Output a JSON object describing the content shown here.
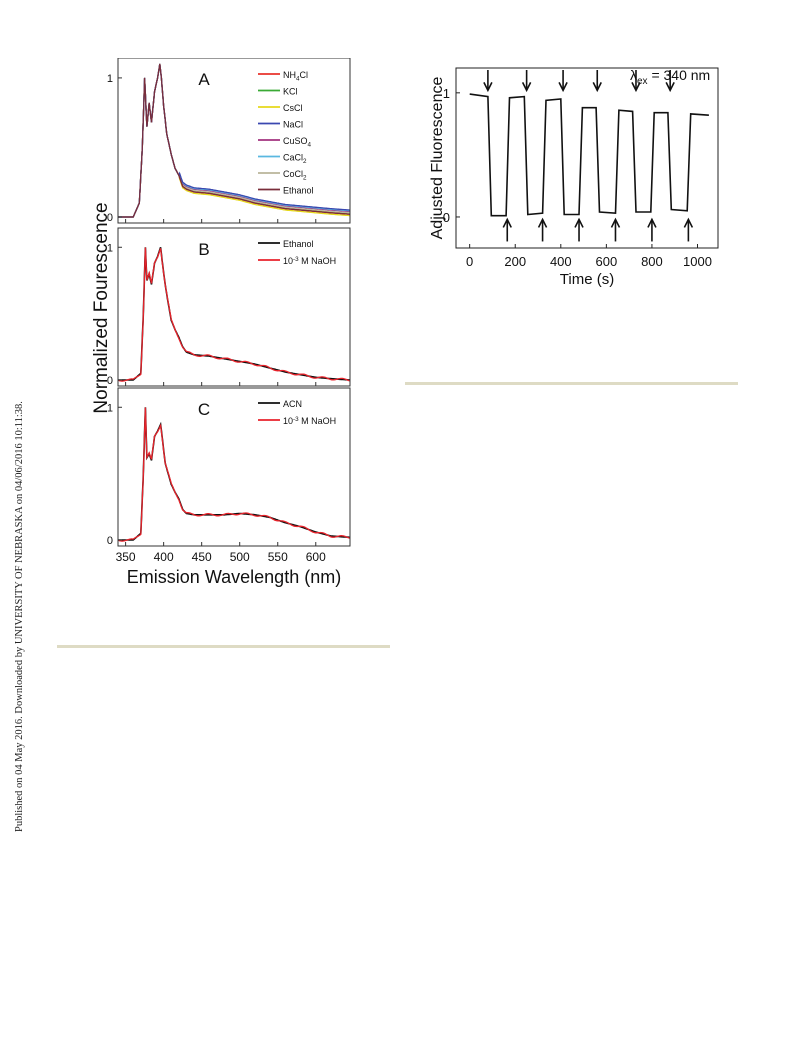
{
  "side_note": "Published on 04 May 2016. Downloaded by UNIVERSITY OF NEBRASKA on 04/06/2016 10:11:38.",
  "colors": {
    "NH4Cl": "#e8332b",
    "KCl": "#3aaa35",
    "CsCl": "#e6d81c",
    "NaCl": "#3a48b0",
    "CuSO4": "#a3327f",
    "CaCl2": "#5ab8e0",
    "CoCl2": "#b9b59a",
    "Ethanol_A": "#7a2d3a",
    "black": "#111111",
    "red": "#e8232b"
  },
  "chart_data": [
    {
      "type": "line",
      "panels_shared": {
        "ylabel": "Normalized Fourescence",
        "xlabel": "Emission Wavelength (nm)",
        "xlim": [
          340,
          645
        ],
        "xticks": [
          "350",
          "400",
          "450",
          "500",
          "550",
          "600"
        ],
        "ylim": [
          0,
          1.1
        ],
        "yticks": [
          "0",
          "1"
        ]
      },
      "panels": [
        {
          "label": "A",
          "series": [
            {
              "name": "NH4Cl",
              "legend": {
                "base": "NH",
                "sub": "4",
                "rest": "Cl"
              },
              "offset": 0.0
            },
            {
              "name": "KCl",
              "legend": {
                "base": "KCl",
                "sub": "",
                "rest": ""
              },
              "offset": 0.005
            },
            {
              "name": "CsCl",
              "legend": {
                "base": "CsCl",
                "sub": "",
                "rest": ""
              },
              "offset": -0.01
            },
            {
              "name": "NaCl",
              "legend": {
                "base": "NaCl",
                "sub": "",
                "rest": ""
              },
              "offset": 0.03
            },
            {
              "name": "CuSO4",
              "legend": {
                "base": "CuSO",
                "sub": "4",
                "rest": ""
              },
              "offset": 0.02
            },
            {
              "name": "CaCl2",
              "legend": {
                "base": "CaCl",
                "sub": "2",
                "rest": ""
              },
              "offset": 0.025
            },
            {
              "name": "CoCl2",
              "legend": {
                "base": "CoCl",
                "sub": "2",
                "rest": ""
              },
              "offset": 0.01
            },
            {
              "name": "Ethanol",
              "legend": {
                "base": "Ethanol",
                "sub": "",
                "rest": ""
              },
              "offset": 0.0
            }
          ]
        },
        {
          "label": "B",
          "series": [
            {
              "name": "Ethanol",
              "legend": {
                "base": "Ethanol",
                "sub": "",
                "rest": ""
              }
            },
            {
              "name": "10-3 M NaOH",
              "legend": {
                "base": "10",
                "sup": "-3",
                "rest": " M NaOH"
              }
            }
          ]
        },
        {
          "label": "C",
          "series": [
            {
              "name": "ACN",
              "legend": {
                "base": "ACN",
                "sub": "",
                "rest": ""
              }
            },
            {
              "name": "10-3 M NaOH",
              "legend": {
                "base": "10",
                "sup": "-3",
                "rest": " M NaOH"
              }
            }
          ]
        }
      ],
      "spectrum_A": {
        "x": [
          340,
          360,
          368,
          372,
          375,
          378,
          381,
          384,
          388,
          392,
          395,
          397,
          400,
          404,
          410,
          415,
          420,
          425,
          430,
          440,
          460,
          480,
          500,
          520,
          540,
          560,
          580,
          600,
          620,
          645
        ],
        "y": [
          0.0,
          0.0,
          0.1,
          0.5,
          1.0,
          0.65,
          0.82,
          0.68,
          0.9,
          1.0,
          1.1,
          1.0,
          0.8,
          0.6,
          0.45,
          0.35,
          0.3,
          0.22,
          0.2,
          0.18,
          0.17,
          0.15,
          0.13,
          0.1,
          0.08,
          0.06,
          0.05,
          0.04,
          0.03,
          0.02
        ]
      },
      "spectrum_B": {
        "x": [
          340,
          360,
          370,
          373,
          376,
          378,
          381,
          384,
          388,
          392,
          396,
          398,
          402,
          406,
          410,
          415,
          420,
          425,
          430,
          440,
          460,
          480,
          500,
          520,
          540,
          560,
          580,
          600,
          620,
          645
        ],
        "y": [
          0.0,
          0.0,
          0.05,
          0.45,
          1.0,
          0.75,
          0.8,
          0.72,
          0.88,
          0.93,
          1.0,
          0.9,
          0.72,
          0.58,
          0.45,
          0.38,
          0.32,
          0.25,
          0.21,
          0.19,
          0.18,
          0.16,
          0.14,
          0.12,
          0.09,
          0.06,
          0.04,
          0.02,
          0.01,
          0.0
        ]
      },
      "spectrum_C": {
        "x": [
          340,
          360,
          370,
          373,
          376,
          378,
          381,
          384,
          388,
          392,
          396,
          398,
          402,
          406,
          410,
          415,
          420,
          425,
          430,
          440,
          460,
          480,
          500,
          520,
          540,
          560,
          580,
          600,
          620,
          645
        ],
        "y": [
          0.0,
          0.0,
          0.05,
          0.45,
          1.0,
          0.62,
          0.65,
          0.6,
          0.78,
          0.82,
          0.87,
          0.78,
          0.58,
          0.5,
          0.42,
          0.36,
          0.31,
          0.23,
          0.2,
          0.19,
          0.19,
          0.19,
          0.2,
          0.19,
          0.17,
          0.13,
          0.1,
          0.06,
          0.03,
          0.02
        ]
      }
    },
    {
      "type": "line",
      "ylabel": "Adjusted Fluorescence",
      "xlabel": "Time (s)",
      "annotation": {
        "lambda": "λ",
        "sub": "ex",
        "rest": " = 340 nm"
      },
      "xlim": [
        -60,
        1090
      ],
      "xticks": [
        "0",
        "200",
        "400",
        "600",
        "800",
        "1000"
      ],
      "ylim": [
        -0.25,
        1.2
      ],
      "yticks": [
        "0",
        "1"
      ],
      "x": [
        0,
        80,
        95,
        160,
        175,
        240,
        255,
        320,
        335,
        400,
        415,
        480,
        495,
        555,
        570,
        640,
        655,
        715,
        730,
        795,
        810,
        870,
        885,
        955,
        970,
        1050
      ],
      "y": [
        0.99,
        0.97,
        0.01,
        0.01,
        0.96,
        0.97,
        0.02,
        0.03,
        0.94,
        0.95,
        0.02,
        0.02,
        0.88,
        0.88,
        0.04,
        0.03,
        0.86,
        0.85,
        0.04,
        0.04,
        0.84,
        0.84,
        0.06,
        0.05,
        0.83,
        0.82
      ],
      "down_arrows_at": [
        80,
        250,
        410,
        560,
        730,
        880
      ],
      "up_arrows_at": [
        165,
        320,
        480,
        640,
        800,
        960
      ]
    }
  ]
}
